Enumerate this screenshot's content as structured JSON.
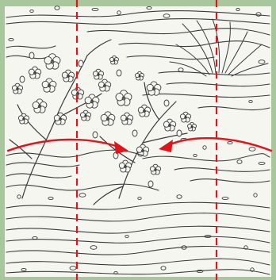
{
  "image": {
    "subject": "line-art-plum-blossom-and-flowing-water-pattern",
    "colors": {
      "frame": "#a8c79c",
      "paper": "#f6f6f1",
      "ink": "#3a3a3a",
      "guide": "#e0141b"
    }
  }
}
